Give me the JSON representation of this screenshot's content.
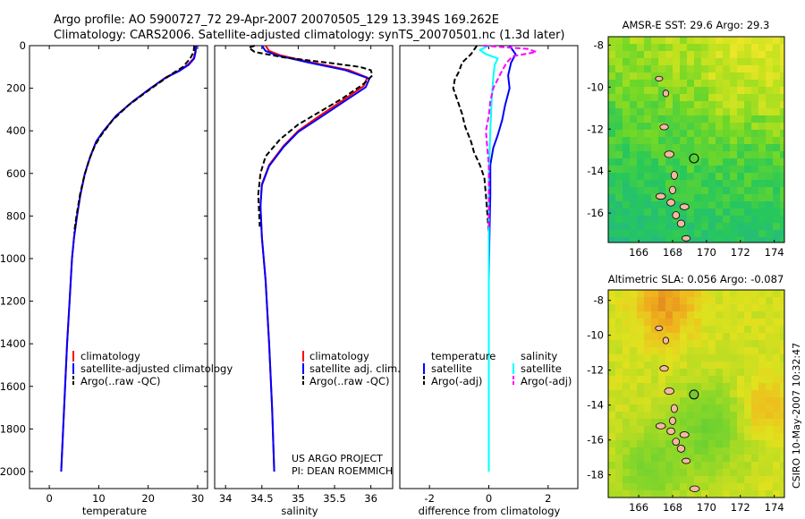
{
  "figure": {
    "title_line1": "Argo profile: AO 5900727_72 29-Apr-2007 20070505_129 13.394S 169.262E",
    "title_line2": "Climatology: CARS2006. Satellite-adjusted climatology: synTS_20070501.nc (1.3d later)",
    "credit_line1": "US ARGO PROJECT",
    "credit_line2": "PI: DEAN ROEMMICH",
    "timestamp": "CSIRO 10-May-2007 10:32:47"
  },
  "chart_data": [
    {
      "type": "line",
      "id": "temperature",
      "xlabel": "temperature",
      "ylabel": "",
      "xlim": [
        -4,
        32
      ],
      "ylim": [
        2080,
        0
      ],
      "xticks": [
        0,
        10,
        20,
        30
      ],
      "yticks": [
        0,
        200,
        400,
        600,
        800,
        1000,
        1200,
        1400,
        1600,
        1800,
        2000
      ],
      "legend": [
        "climatology",
        "satellite-adjusted climatology",
        "Argo(..raw -QC)"
      ],
      "legend_position": "lower-left",
      "series": [
        {
          "name": "climatology",
          "color": "#ff0000",
          "style": "solid",
          "points": [
            [
              29.6,
              0
            ],
            [
              29.5,
              30
            ],
            [
              29.2,
              60
            ],
            [
              28,
              90
            ],
            [
              26,
              120
            ],
            [
              23.5,
              150
            ],
            [
              20.5,
              200
            ],
            [
              17,
              260
            ],
            [
              13.5,
              330
            ],
            [
              11,
              400
            ],
            [
              9.5,
              450
            ],
            [
              8.3,
              520
            ],
            [
              7.2,
              600
            ],
            [
              6.3,
              700
            ],
            [
              5.6,
              800
            ],
            [
              5.0,
              900
            ],
            [
              4.6,
              1000
            ],
            [
              4.1,
              1200
            ],
            [
              3.6,
              1400
            ],
            [
              3.2,
              1600
            ],
            [
              2.8,
              1800
            ],
            [
              2.4,
              2000
            ]
          ]
        },
        {
          "name": "satellite-adjusted climatology",
          "color": "#0000ff",
          "style": "solid",
          "points": [
            [
              29.7,
              0
            ],
            [
              29.6,
              30
            ],
            [
              29.3,
              60
            ],
            [
              28.2,
              90
            ],
            [
              26.2,
              120
            ],
            [
              23.6,
              150
            ],
            [
              20.5,
              200
            ],
            [
              17,
              260
            ],
            [
              13.5,
              330
            ],
            [
              11,
              400
            ],
            [
              9.5,
              450
            ],
            [
              8.3,
              520
            ],
            [
              7.2,
              600
            ],
            [
              6.3,
              700
            ],
            [
              5.6,
              800
            ],
            [
              5.0,
              900
            ],
            [
              4.6,
              1000
            ],
            [
              4.1,
              1200
            ],
            [
              3.6,
              1400
            ],
            [
              3.2,
              1600
            ],
            [
              2.8,
              1800
            ],
            [
              2.4,
              2000
            ]
          ]
        },
        {
          "name": "Argo(..raw -QC)",
          "color": "#000000",
          "style": "dashed",
          "points": [
            [
              29.3,
              0
            ],
            [
              29.2,
              30
            ],
            [
              28.5,
              60
            ],
            [
              27,
              100
            ],
            [
              25,
              130
            ],
            [
              22.5,
              170
            ],
            [
              19.5,
              220
            ],
            [
              16,
              280
            ],
            [
              12.8,
              350
            ],
            [
              10.5,
              420
            ],
            [
              9.2,
              470
            ],
            [
              8,
              540
            ],
            [
              7,
              620
            ],
            [
              6.2,
              700
            ],
            [
              5.5,
              800
            ],
            [
              5.0,
              880
            ]
          ]
        }
      ]
    },
    {
      "type": "line",
      "id": "salinity",
      "xlabel": "salinity",
      "ylabel": "",
      "xlim": [
        33.85,
        36.3
      ],
      "ylim": [
        2080,
        0
      ],
      "xticks": [
        34,
        34.5,
        35,
        35.5,
        36
      ],
      "yticks": [],
      "legend": [
        "climatology",
        "satellite adj. clim.",
        "Argo(..raw -QC)"
      ],
      "legend_position": "lower-right",
      "series": [
        {
          "name": "climatology",
          "color": "#ff0000",
          "style": "solid",
          "points": [
            [
              34.55,
              0
            ],
            [
              34.6,
              25
            ],
            [
              34.75,
              45
            ],
            [
              35.2,
              80
            ],
            [
              35.7,
              115
            ],
            [
              35.95,
              150
            ],
            [
              35.9,
              190
            ],
            [
              35.6,
              260
            ],
            [
              35.25,
              340
            ],
            [
              35.0,
              400
            ],
            [
              34.8,
              470
            ],
            [
              34.6,
              560
            ],
            [
              34.5,
              650
            ],
            [
              34.48,
              750
            ],
            [
              34.5,
              900
            ],
            [
              34.55,
              1100
            ],
            [
              34.6,
              1400
            ],
            [
              34.64,
              1700
            ],
            [
              34.67,
              2000
            ]
          ]
        },
        {
          "name": "satellite adj. clim.",
          "color": "#0000ff",
          "style": "solid",
          "points": [
            [
              34.5,
              0
            ],
            [
              34.55,
              25
            ],
            [
              34.7,
              45
            ],
            [
              35.15,
              80
            ],
            [
              35.65,
              115
            ],
            [
              35.98,
              155
            ],
            [
              35.93,
              195
            ],
            [
              35.62,
              265
            ],
            [
              35.27,
              345
            ],
            [
              35.0,
              405
            ],
            [
              34.8,
              475
            ],
            [
              34.6,
              565
            ],
            [
              34.5,
              655
            ],
            [
              34.48,
              755
            ],
            [
              34.5,
              900
            ],
            [
              34.55,
              1100
            ],
            [
              34.6,
              1400
            ],
            [
              34.64,
              1700
            ],
            [
              34.67,
              2000
            ]
          ]
        },
        {
          "name": "Argo(..raw -QC)",
          "color": "#000000",
          "style": "dashed",
          "points": [
            [
              34.4,
              0
            ],
            [
              34.32,
              10
            ],
            [
              34.4,
              30
            ],
            [
              34.8,
              55
            ],
            [
              35.4,
              80
            ],
            [
              35.85,
              100
            ],
            [
              36.0,
              115
            ],
            [
              36.02,
              140
            ],
            [
              35.9,
              180
            ],
            [
              35.6,
              250
            ],
            [
              35.3,
              310
            ],
            [
              35.0,
              370
            ],
            [
              34.75,
              440
            ],
            [
              34.55,
              520
            ],
            [
              34.48,
              600
            ],
            [
              34.45,
              700
            ],
            [
              34.47,
              850
            ]
          ]
        }
      ]
    },
    {
      "type": "line",
      "id": "difference",
      "xlabel": "difference from climatology",
      "ylabel": "",
      "xlim": [
        -3,
        3
      ],
      "ylim": [
        2080,
        0
      ],
      "xticks": [
        -2,
        0,
        2
      ],
      "yticks": [],
      "legend_left": [
        "temperature",
        "satellite",
        "Argo(-adj)"
      ],
      "legend_right": [
        "salinity",
        "satellite",
        "Argo(-adj)"
      ],
      "legend_position": "lower",
      "series": [
        {
          "name": "temperature satellite",
          "color": "#0000ff",
          "style": "solid",
          "points": [
            [
              0.7,
              0
            ],
            [
              0.9,
              40
            ],
            [
              0.75,
              80
            ],
            [
              0.65,
              140
            ],
            [
              0.7,
              200
            ],
            [
              0.55,
              280
            ],
            [
              0.45,
              350
            ],
            [
              0.3,
              420
            ],
            [
              0.15,
              480
            ],
            [
              0.05,
              560
            ],
            [
              0.05,
              700
            ],
            [
              0.02,
              900
            ],
            [
              0.0,
              1100
            ],
            [
              0.0,
              1400
            ],
            [
              0.0,
              1700
            ],
            [
              0.0,
              2000
            ]
          ]
        },
        {
          "name": "temperature Argo(-adj)",
          "color": "#000000",
          "style": "dashed",
          "points": [
            [
              -0.4,
              0
            ],
            [
              -0.6,
              40
            ],
            [
              -0.9,
              80
            ],
            [
              -1.0,
              120
            ],
            [
              -1.15,
              160
            ],
            [
              -1.2,
              200
            ],
            [
              -1.05,
              260
            ],
            [
              -0.9,
              320
            ],
            [
              -0.8,
              380
            ],
            [
              -0.6,
              450
            ],
            [
              -0.5,
              500
            ],
            [
              -0.3,
              560
            ],
            [
              -0.15,
              620
            ],
            [
              -0.1,
              700
            ],
            [
              0.0,
              880
            ]
          ]
        },
        {
          "name": "salinity satellite",
          "color": "#00ffff",
          "style": "solid",
          "points": [
            [
              0.0,
              0
            ],
            [
              -0.3,
              20
            ],
            [
              -0.1,
              40
            ],
            [
              0.3,
              60
            ],
            [
              0.2,
              90
            ],
            [
              0.15,
              150
            ],
            [
              0.1,
              250
            ],
            [
              0.05,
              400
            ],
            [
              0.0,
              600
            ],
            [
              0.0,
              800
            ],
            [
              0.0,
              1000
            ],
            [
              0.0,
              1300
            ],
            [
              0.0,
              1600
            ],
            [
              0.0,
              2000
            ]
          ]
        },
        {
          "name": "salinity Argo(-adj)",
          "color": "#ff00ff",
          "style": "dashed",
          "points": [
            [
              -0.2,
              0
            ],
            [
              1.3,
              15
            ],
            [
              1.6,
              30
            ],
            [
              0.8,
              50
            ],
            [
              0.6,
              80
            ],
            [
              0.4,
              130
            ],
            [
              0.15,
              200
            ],
            [
              0.05,
              260
            ],
            [
              0.0,
              330
            ],
            [
              -0.1,
              400
            ],
            [
              -0.05,
              480
            ],
            [
              0.0,
              560
            ],
            [
              0.0,
              700
            ],
            [
              0.0,
              850
            ]
          ]
        }
      ]
    }
  ],
  "maps": [
    {
      "title": "AMSR-E SST: 29.6  Argo: 29.3",
      "xlim": [
        164.2,
        174.6
      ],
      "ylim": [
        -17.4,
        -7.6
      ],
      "xticks": [
        166,
        168,
        170,
        172,
        174
      ],
      "yticks": [
        -8,
        -10,
        -12,
        -14,
        -16
      ],
      "marker": {
        "lon": 169.262,
        "lat": -13.394
      },
      "color_scheme": "sst"
    },
    {
      "title": "Altimetric SLA: 0.056  Argo: -0.087",
      "xlim": [
        164.2,
        174.6
      ],
      "ylim": [
        -19.3,
        -7.4
      ],
      "xticks": [
        166,
        168,
        170,
        172,
        174
      ],
      "yticks": [
        -8,
        -10,
        -12,
        -14,
        -16,
        -18
      ],
      "marker": {
        "lon": 169.262,
        "lat": -13.394
      },
      "color_scheme": "sla"
    }
  ]
}
